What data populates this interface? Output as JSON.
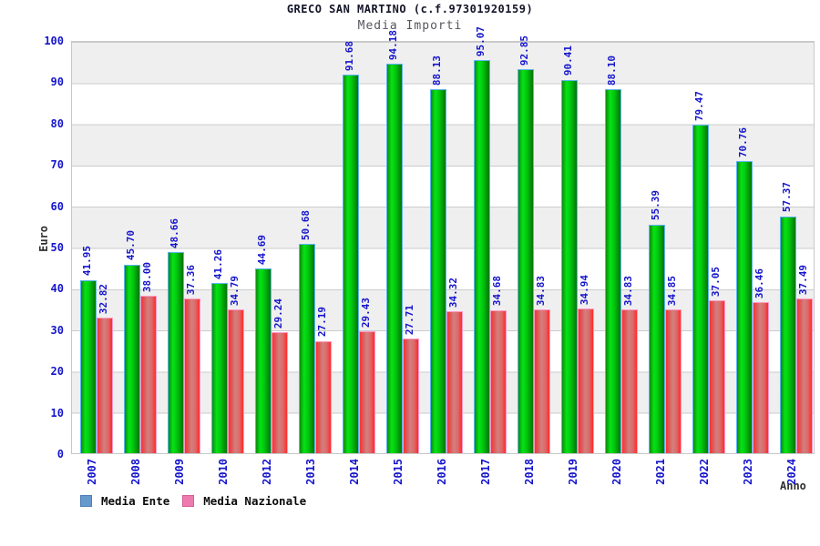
{
  "title": "GRECO SAN MARTINO (c.f.97301920159)",
  "subtitle": "Media Importi",
  "chart_data": {
    "type": "bar",
    "categories": [
      "2007",
      "2008",
      "2009",
      "2010",
      "2012",
      "2013",
      "2014",
      "2015",
      "2016",
      "2017",
      "2018",
      "2019",
      "2020",
      "2021",
      "2022",
      "2023",
      "2024"
    ],
    "series": [
      {
        "name": "Media Ente",
        "color": "#00cc11",
        "values": [
          41.95,
          45.7,
          48.66,
          41.26,
          44.69,
          50.68,
          91.68,
          94.18,
          88.13,
          95.07,
          92.85,
          90.41,
          88.1,
          55.39,
          79.47,
          70.76,
          57.37
        ]
      },
      {
        "name": "Media Nazionale",
        "color": "#ee3333",
        "values": [
          32.82,
          38.0,
          37.36,
          34.79,
          29.24,
          27.19,
          29.43,
          27.71,
          34.32,
          34.68,
          34.83,
          34.94,
          34.83,
          34.85,
          37.05,
          36.46,
          37.49
        ]
      }
    ],
    "xlabel": "Anno",
    "ylabel": "Euro",
    "ylim": [
      0,
      100
    ],
    "yticks": [
      0,
      10,
      20,
      30,
      40,
      50,
      60,
      70,
      80,
      90,
      100
    ],
    "grid": true,
    "value_labels": true,
    "legend_position": "bottom-left",
    "legend": [
      {
        "label": "Media Ente",
        "swatch": "#6699cc"
      },
      {
        "label": "Media Nazionale",
        "swatch": "#ee7bb0"
      }
    ]
  },
  "colors": {
    "tick_text": "#1414cc",
    "value_text": "#1414cc",
    "title_text": "#14142a",
    "subtitle_text": "#56565e",
    "axis_title_text": "#303030",
    "band_gray": "#efefef",
    "grid_line": "#cbcbcb",
    "bar_green_outline": "#5db4ef",
    "bar_red_outline": "#ff9ac6"
  }
}
